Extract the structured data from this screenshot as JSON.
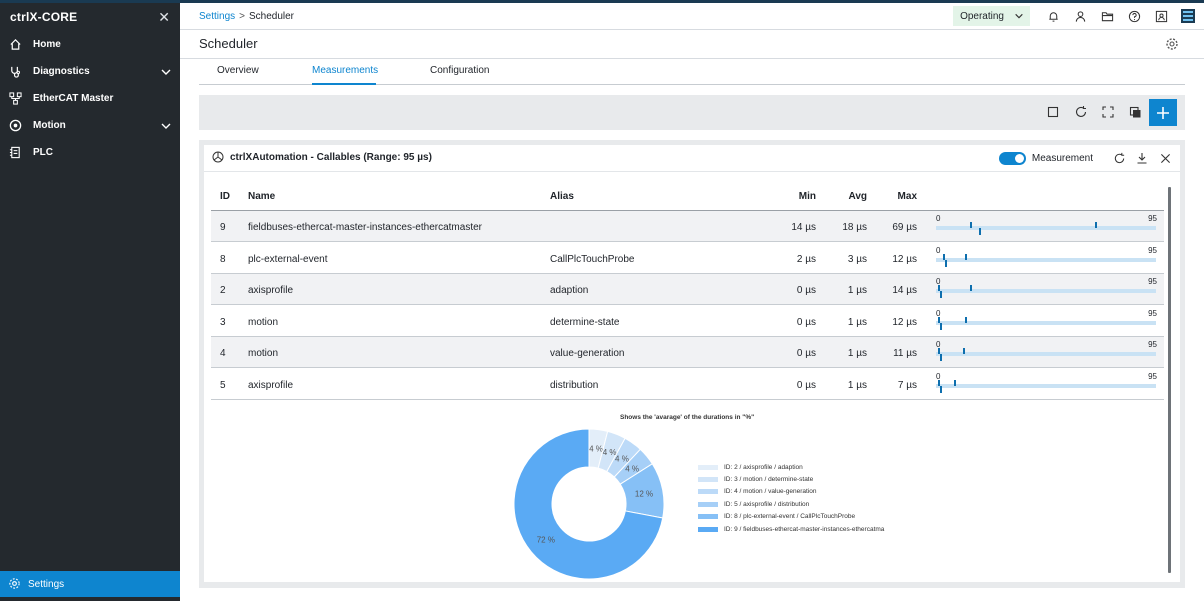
{
  "app": {
    "brand": "ctrlX-CORE"
  },
  "sidebar": {
    "items": [
      {
        "label": "Home",
        "icon": "home-icon"
      },
      {
        "label": "Diagnostics",
        "icon": "diagnostics-icon",
        "expandable": true
      },
      {
        "label": "EtherCAT Master",
        "icon": "ethercat-icon"
      },
      {
        "label": "Motion",
        "icon": "motion-icon",
        "expandable": true
      },
      {
        "label": "PLC",
        "icon": "plc-icon"
      }
    ],
    "settings_label": "Settings"
  },
  "header": {
    "breadcrumb_parent": "Settings",
    "breadcrumb_separator": ">",
    "breadcrumb_current": "Scheduler",
    "state": "Operating"
  },
  "page": {
    "title": "Scheduler"
  },
  "tabs": [
    {
      "label": "Overview",
      "active": false
    },
    {
      "label": "Measurements",
      "active": true
    },
    {
      "label": "Configuration",
      "active": false
    }
  ],
  "card": {
    "title": "ctrlXAutomation - Callables (Range: 95 µs)",
    "measurement_label": "Measurement",
    "measurement_on": true
  },
  "table": {
    "columns": [
      "ID",
      "Name",
      "Alias",
      "Min",
      "Avg",
      "Max"
    ],
    "range_min": "0",
    "range_max": "95",
    "rows": [
      {
        "id": "9",
        "name": "fieldbuses-ethercat-master-instances-ethercatmaster",
        "alias": "",
        "min": "14 µs",
        "avg": "18 µs",
        "max": "69 µs",
        "min_v": 14,
        "avg_v": 18,
        "max_v": 69
      },
      {
        "id": "8",
        "name": "plc-external-event",
        "alias": "CallPlcTouchProbe",
        "min": "2 µs",
        "avg": "3 µs",
        "max": "12 µs",
        "min_v": 2,
        "avg_v": 3,
        "max_v": 12
      },
      {
        "id": "2",
        "name": "axisprofile",
        "alias": "adaption",
        "min": "0 µs",
        "avg": "1 µs",
        "max": "14 µs",
        "min_v": 0,
        "avg_v": 1,
        "max_v": 14
      },
      {
        "id": "3",
        "name": "motion",
        "alias": "determine-state",
        "min": "0 µs",
        "avg": "1 µs",
        "max": "12 µs",
        "min_v": 0,
        "avg_v": 1,
        "max_v": 12
      },
      {
        "id": "4",
        "name": "motion",
        "alias": "value-generation",
        "min": "0 µs",
        "avg": "1 µs",
        "max": "11 µs",
        "min_v": 0,
        "avg_v": 1,
        "max_v": 11
      },
      {
        "id": "5",
        "name": "axisprofile",
        "alias": "distribution",
        "min": "0 µs",
        "avg": "1 µs",
        "max": "7 µs",
        "min_v": 0,
        "avg_v": 1,
        "max_v": 7
      }
    ]
  },
  "chart_data": {
    "type": "pie",
    "title": "Shows the 'avarage' of the durations in \"%\"",
    "slices": [
      {
        "label": "ID: 2 / axisprofile / adaption",
        "value": 4,
        "text": "4 %",
        "color": "#e3eef9"
      },
      {
        "label": "ID: 3 / motion / determine-state",
        "value": 4,
        "text": "4 %",
        "color": "#d2e5f8"
      },
      {
        "label": "ID: 4 / motion / value-generation",
        "value": 4,
        "text": "4 %",
        "color": "#bcdaf8"
      },
      {
        "label": "ID: 5 / axisprofile / distribution",
        "value": 4,
        "text": "4 %",
        "color": "#a6cff7"
      },
      {
        "label": "ID: 8 / plc-external-event / CallPlcTouchProbe",
        "value": 12,
        "text": "12 %",
        "color": "#86c0f6"
      },
      {
        "label": "ID: 9 / fieldbuses-ethercat-master-instances-ethercatma",
        "value": 72,
        "text": "72 %",
        "color": "#5aaaf4"
      }
    ]
  }
}
